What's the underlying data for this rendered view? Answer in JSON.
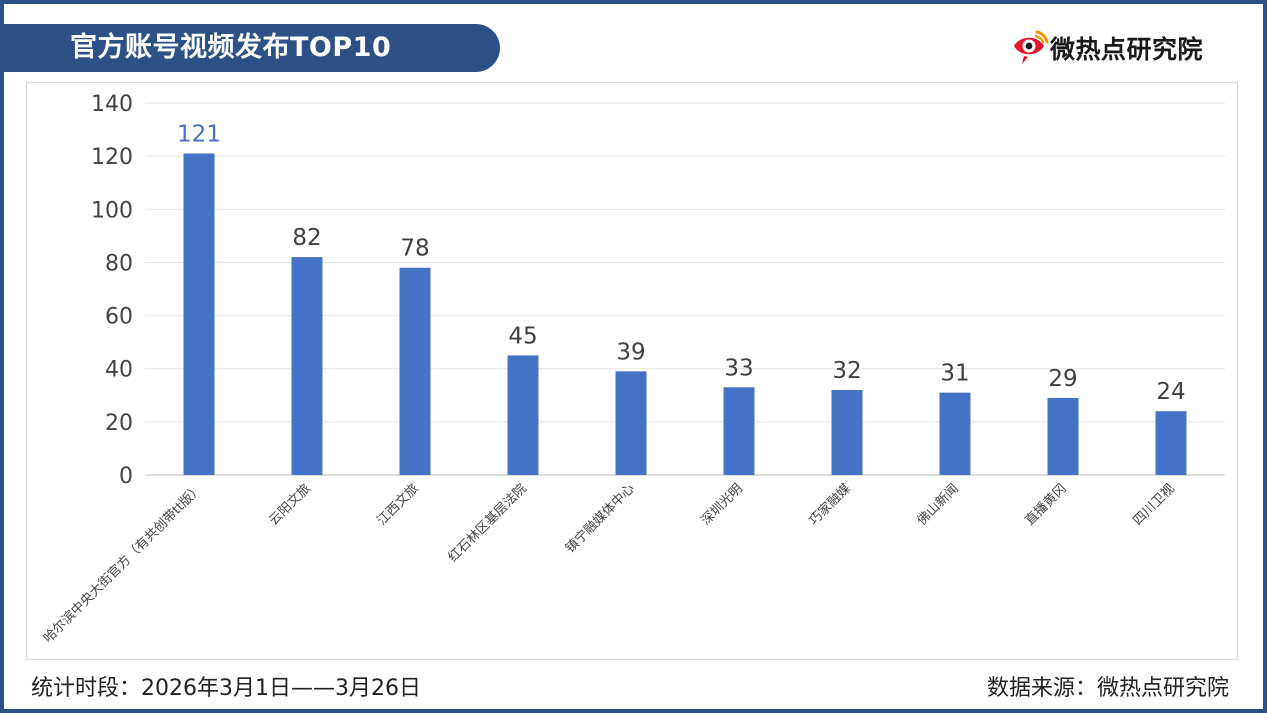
{
  "header": {
    "title": "官方账号视频发布TOP10",
    "brand": "微热点研究院"
  },
  "footer": {
    "period": "统计时段：2026年3月1日——3月26日",
    "source": "数据来源：微热点研究院"
  },
  "colors": {
    "banner": "#2c5186",
    "bar": "#4472c4",
    "first_label": "#4472c4"
  },
  "icons": {
    "brand_logo": "weibo-eye-logo"
  },
  "chart_data": {
    "type": "bar",
    "title": "",
    "xlabel": "",
    "ylabel": "",
    "categories": [
      "哈尔滨中央大街官方（有共创带tt版）",
      "云阳文旅",
      "江西文旅",
      "红石林区基层法院",
      "镇宁融媒体中心",
      "深圳光明",
      "巧家融媒",
      "佛山新闻",
      "直播黄冈",
      "四川卫视"
    ],
    "values": [
      121,
      82,
      78,
      45,
      39,
      33,
      32,
      31,
      29,
      24
    ],
    "ylim": [
      0,
      140
    ],
    "yticks": [
      0,
      20,
      40,
      60,
      80,
      100,
      120,
      140
    ],
    "grid": true,
    "legend": "none"
  }
}
